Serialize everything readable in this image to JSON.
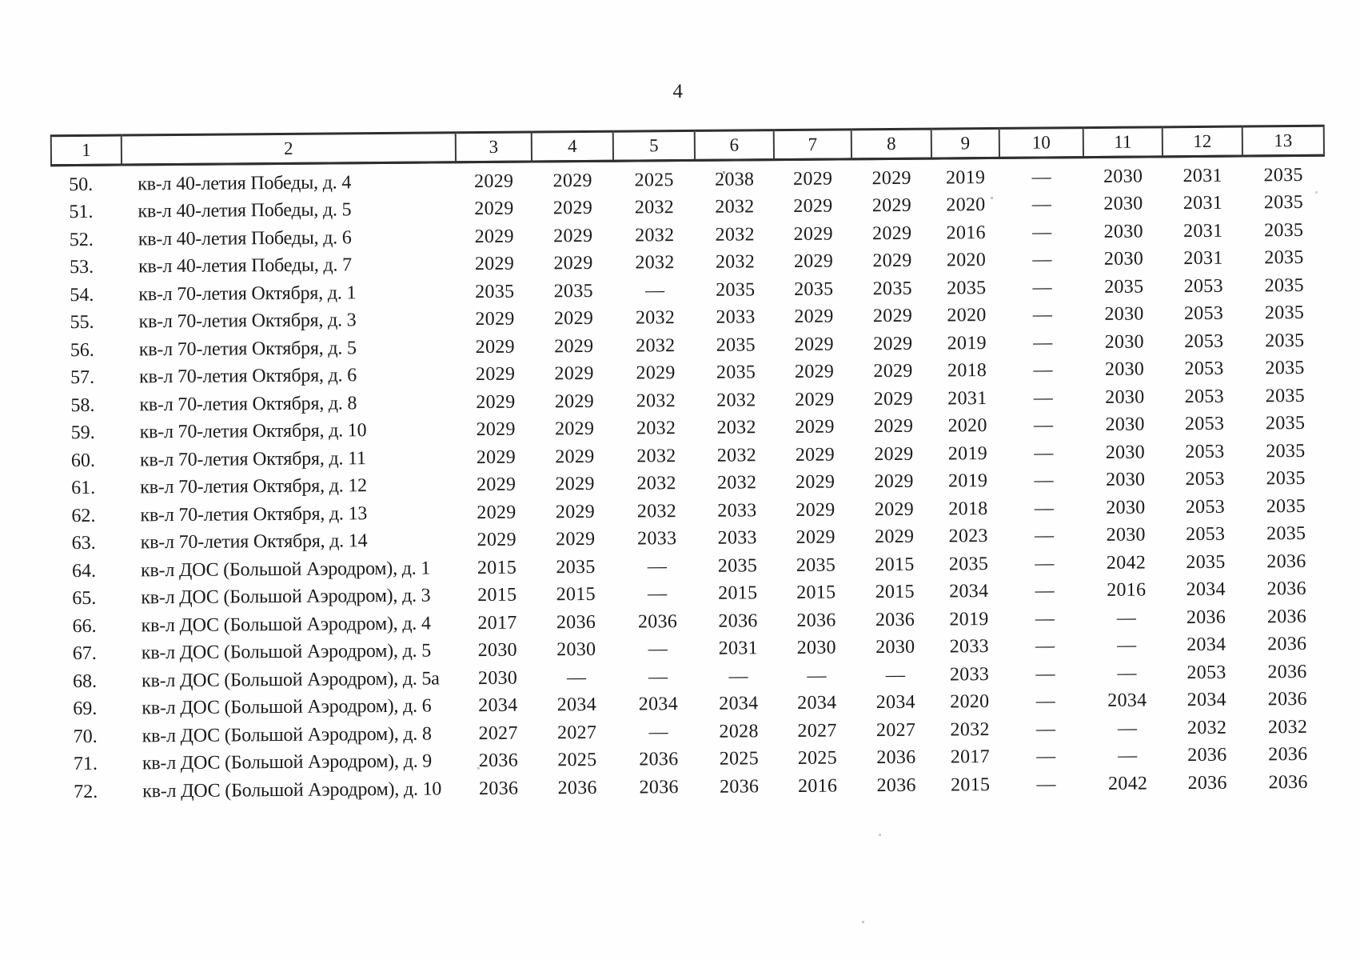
{
  "page": {
    "number": "4"
  },
  "table": {
    "headers": [
      "1",
      "2",
      "3",
      "4",
      "5",
      "6",
      "7",
      "8",
      "9",
      "10",
      "11",
      "12",
      "13"
    ],
    "rows": [
      {
        "num": "50.",
        "address": "кв-л 40-летия Победы, д. 4",
        "values": [
          "2029",
          "2029",
          "2025",
          "2038",
          "2029",
          "2029",
          "2019",
          "—",
          "2030",
          "2031",
          "2035"
        ]
      },
      {
        "num": "51.",
        "address": "кв-л 40-летия Победы, д. 5",
        "values": [
          "2029",
          "2029",
          "2032",
          "2032",
          "2029",
          "2029",
          "2020",
          "—",
          "2030",
          "2031",
          "2035"
        ]
      },
      {
        "num": "52.",
        "address": "кв-л 40-летия Победы, д. 6",
        "values": [
          "2029",
          "2029",
          "2032",
          "2032",
          "2029",
          "2029",
          "2016",
          "—",
          "2030",
          "2031",
          "2035"
        ]
      },
      {
        "num": "53.",
        "address": "кв-л 40-летия Победы, д. 7",
        "values": [
          "2029",
          "2029",
          "2032",
          "2032",
          "2029",
          "2029",
          "2020",
          "—",
          "2030",
          "2031",
          "2035"
        ]
      },
      {
        "num": "54.",
        "address": "кв-л 70-летия Октября, д. 1",
        "values": [
          "2035",
          "2035",
          "—",
          "2035",
          "2035",
          "2035",
          "2035",
          "—",
          "2035",
          "2053",
          "2035"
        ]
      },
      {
        "num": "55.",
        "address": "кв-л 70-летия Октября, д. 3",
        "values": [
          "2029",
          "2029",
          "2032",
          "2033",
          "2029",
          "2029",
          "2020",
          "—",
          "2030",
          "2053",
          "2035"
        ]
      },
      {
        "num": "56.",
        "address": "кв-л 70-летия Октября, д. 5",
        "values": [
          "2029",
          "2029",
          "2032",
          "2035",
          "2029",
          "2029",
          "2019",
          "—",
          "2030",
          "2053",
          "2035"
        ]
      },
      {
        "num": "57.",
        "address": "кв-л 70-летия Октября, д. 6",
        "values": [
          "2029",
          "2029",
          "2029",
          "2035",
          "2029",
          "2029",
          "2018",
          "—",
          "2030",
          "2053",
          "2035"
        ]
      },
      {
        "num": "58.",
        "address": "кв-л 70-летия Октября, д. 8",
        "values": [
          "2029",
          "2029",
          "2032",
          "2032",
          "2029",
          "2029",
          "2031",
          "—",
          "2030",
          "2053",
          "2035"
        ]
      },
      {
        "num": "59.",
        "address": "кв-л 70-летия Октября, д. 10",
        "values": [
          "2029",
          "2029",
          "2032",
          "2032",
          "2029",
          "2029",
          "2020",
          "—",
          "2030",
          "2053",
          "2035"
        ]
      },
      {
        "num": "60.",
        "address": "кв-л 70-летия Октября, д. 11",
        "values": [
          "2029",
          "2029",
          "2032",
          "2032",
          "2029",
          "2029",
          "2019",
          "—",
          "2030",
          "2053",
          "2035"
        ]
      },
      {
        "num": "61.",
        "address": "кв-л 70-летия Октября, д. 12",
        "values": [
          "2029",
          "2029",
          "2032",
          "2032",
          "2029",
          "2029",
          "2019",
          "—",
          "2030",
          "2053",
          "2035"
        ]
      },
      {
        "num": "62.",
        "address": "кв-л 70-летия Октября, д. 13",
        "values": [
          "2029",
          "2029",
          "2032",
          "2033",
          "2029",
          "2029",
          "2018",
          "—",
          "2030",
          "2053",
          "2035"
        ]
      },
      {
        "num": "63.",
        "address": "кв-л 70-летия Октября, д. 14",
        "values": [
          "2029",
          "2029",
          "2033",
          "2033",
          "2029",
          "2029",
          "2023",
          "—",
          "2030",
          "2053",
          "2035"
        ]
      },
      {
        "num": "64.",
        "address": "кв-л ДОС (Большой Аэродром), д. 1",
        "values": [
          "2015",
          "2035",
          "—",
          "2035",
          "2035",
          "2015",
          "2035",
          "—",
          "2042",
          "2035",
          "2036"
        ]
      },
      {
        "num": "65.",
        "address": "кв-л ДОС (Большой Аэродром), д. 3",
        "values": [
          "2015",
          "2015",
          "—",
          "2015",
          "2015",
          "2015",
          "2034",
          "—",
          "2016",
          "2034",
          "2036"
        ]
      },
      {
        "num": "66.",
        "address": "кв-л ДОС (Большой Аэродром), д. 4",
        "values": [
          "2017",
          "2036",
          "2036",
          "2036",
          "2036",
          "2036",
          "2019",
          "—",
          "—",
          "2036",
          "2036"
        ]
      },
      {
        "num": "67.",
        "address": "кв-л ДОС (Большой Аэродром), д. 5",
        "values": [
          "2030",
          "2030",
          "—",
          "2031",
          "2030",
          "2030",
          "2033",
          "—",
          "—",
          "2034",
          "2036"
        ]
      },
      {
        "num": "68.",
        "address": "кв-л ДОС (Большой Аэродром), д. 5а",
        "values": [
          "2030",
          "—",
          "—",
          "—",
          "—",
          "—",
          "2033",
          "—",
          "—",
          "2053",
          "2036"
        ]
      },
      {
        "num": "69.",
        "address": "кв-л ДОС (Большой Аэродром), д. 6",
        "values": [
          "2034",
          "2034",
          "2034",
          "2034",
          "2034",
          "2034",
          "2020",
          "—",
          "2034",
          "2034",
          "2036"
        ]
      },
      {
        "num": "70.",
        "address": "кв-л ДОС (Большой Аэродром), д. 8",
        "values": [
          "2027",
          "2027",
          "—",
          "2028",
          "2027",
          "2027",
          "2032",
          "—",
          "—",
          "2032",
          "2032"
        ]
      },
      {
        "num": "71.",
        "address": "кв-л ДОС (Большой Аэродром), д. 9",
        "values": [
          "2036",
          "2025",
          "2036",
          "2025",
          "2025",
          "2036",
          "2017",
          "—",
          "—",
          "2036",
          "2036"
        ]
      },
      {
        "num": "72.",
        "address": "кв-л ДОС (Большой Аэродром), д. 10",
        "values": [
          "2036",
          "2036",
          "2036",
          "2036",
          "2016",
          "2036",
          "2015",
          "—",
          "2042",
          "2036",
          "2036"
        ]
      }
    ]
  }
}
